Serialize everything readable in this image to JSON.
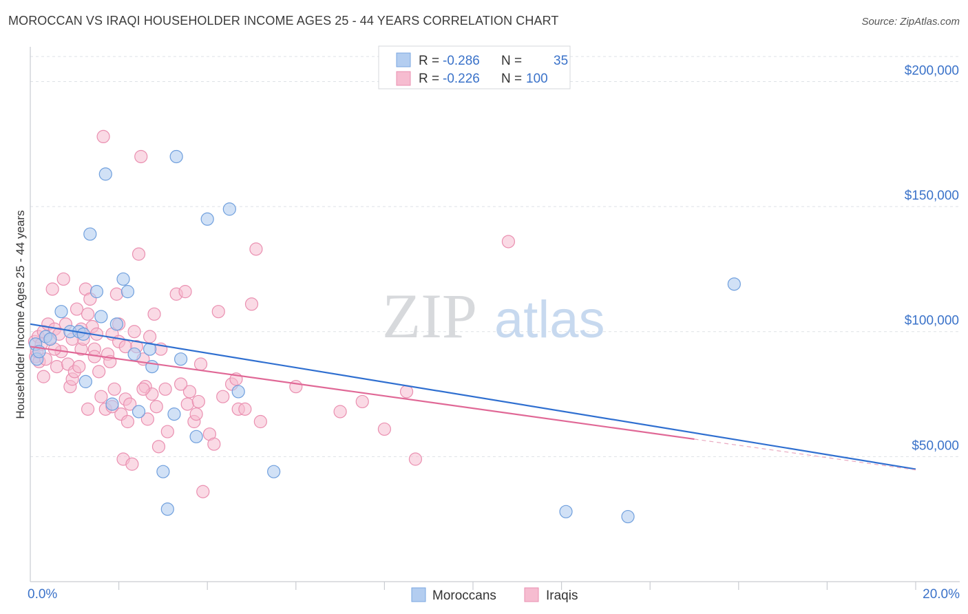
{
  "title": "MOROCCAN VS IRAQI HOUSEHOLDER INCOME AGES 25 - 44 YEARS CORRELATION CHART",
  "source": "Source: ZipAtlas.com",
  "watermark": {
    "zip": "ZIP",
    "atlas": "atlas"
  },
  "colors": {
    "blue": "#3a72c9",
    "blue_fill": "#b3cdf0",
    "blue_line": "#2f6fd0",
    "pink": "#e8709a",
    "pink_fill": "#f6bcd0",
    "pink_line": "#e06896",
    "grid": "#dde1e6"
  },
  "legend": {
    "rows": [
      {
        "r_label": "R =",
        "r_value": "-0.286",
        "n_label": "N =",
        "n_value": "35"
      },
      {
        "r_label": "R =",
        "r_value": "-0.226",
        "n_label": "N =",
        "n_value": "100"
      }
    ]
  },
  "bottom_legend": {
    "moroccans": "Moroccans",
    "iraqis": "Iraqis"
  },
  "chart_data": {
    "type": "scatter",
    "title": "MOROCCAN VS IRAQI HOUSEHOLDER INCOME AGES 25 - 44 YEARS CORRELATION CHART",
    "xlabel": "",
    "ylabel": "Householder Income Ages 25 - 44 years",
    "xlim": [
      0,
      20
    ],
    "ylim": [
      0,
      215000
    ],
    "x_tick_labels": {
      "left": "0.0%",
      "right": "20.0%"
    },
    "y_ticks": [
      {
        "value": 50000,
        "label": "$50,000"
      },
      {
        "value": 100000,
        "label": "$100,000"
      },
      {
        "value": 150000,
        "label": "$150,000"
      },
      {
        "value": 200000,
        "label": "$200,000"
      }
    ],
    "series": [
      {
        "name": "Moroccans",
        "trend": {
          "x0": 0,
          "y0": 103000,
          "x1": 20,
          "y1": 45000
        },
        "points": [
          [
            0.12,
            95000
          ],
          [
            0.15,
            89000
          ],
          [
            0.2,
            92000
          ],
          [
            0.35,
            98000
          ],
          [
            0.45,
            97000
          ],
          [
            0.7,
            108000
          ],
          [
            0.9,
            100000
          ],
          [
            1.1,
            100000
          ],
          [
            1.25,
            80000
          ],
          [
            1.35,
            139000
          ],
          [
            1.5,
            116000
          ],
          [
            1.6,
            106000
          ],
          [
            1.7,
            163000
          ],
          [
            1.85,
            71000
          ],
          [
            2.1,
            121000
          ],
          [
            2.2,
            116000
          ],
          [
            2.35,
            91000
          ],
          [
            2.45,
            68000
          ],
          [
            2.7,
            93000
          ],
          [
            2.75,
            86000
          ],
          [
            3.0,
            44000
          ],
          [
            3.1,
            29000
          ],
          [
            3.25,
            67000
          ],
          [
            3.3,
            170000
          ],
          [
            3.4,
            89000
          ],
          [
            3.75,
            58000
          ],
          [
            4.0,
            145000
          ],
          [
            4.5,
            149000
          ],
          [
            4.7,
            76000
          ],
          [
            5.5,
            44000
          ],
          [
            1.2,
            99000
          ],
          [
            1.95,
            103000
          ],
          [
            12.1,
            28000
          ],
          [
            13.5,
            26000
          ],
          [
            15.9,
            119000
          ]
        ]
      },
      {
        "name": "Iraqis",
        "trend": {
          "x0": 0,
          "y0": 94000,
          "x1": 15,
          "y1": 57000
        },
        "points": [
          [
            0.1,
            96000
          ],
          [
            0.12,
            90000
          ],
          [
            0.15,
            92000
          ],
          [
            0.18,
            98000
          ],
          [
            0.2,
            88000
          ],
          [
            0.25,
            95000
          ],
          [
            0.3,
            100000
          ],
          [
            0.35,
            89000
          ],
          [
            0.4,
            103000
          ],
          [
            0.45,
            97000
          ],
          [
            0.5,
            117000
          ],
          [
            0.55,
            101000
          ],
          [
            0.6,
            86000
          ],
          [
            0.65,
            99000
          ],
          [
            0.7,
            92000
          ],
          [
            0.75,
            121000
          ],
          [
            0.8,
            103000
          ],
          [
            0.85,
            87000
          ],
          [
            0.9,
            78000
          ],
          [
            0.95,
            81000
          ],
          [
            1.0,
            84000
          ],
          [
            1.05,
            109000
          ],
          [
            1.1,
            86000
          ],
          [
            1.15,
            93000
          ],
          [
            1.2,
            97000
          ],
          [
            1.25,
            117000
          ],
          [
            1.3,
            107000
          ],
          [
            1.35,
            113000
          ],
          [
            1.4,
            102000
          ],
          [
            1.45,
            93000
          ],
          [
            1.5,
            99000
          ],
          [
            1.55,
            84000
          ],
          [
            1.6,
            74000
          ],
          [
            1.65,
            178000
          ],
          [
            1.7,
            69000
          ],
          [
            1.75,
            91000
          ],
          [
            1.8,
            88000
          ],
          [
            1.85,
            99000
          ],
          [
            1.9,
            77000
          ],
          [
            1.95,
            115000
          ],
          [
            2.0,
            103000
          ],
          [
            2.05,
            67000
          ],
          [
            2.1,
            49000
          ],
          [
            2.15,
            73000
          ],
          [
            2.2,
            64000
          ],
          [
            2.25,
            71000
          ],
          [
            2.3,
            47000
          ],
          [
            2.35,
            100000
          ],
          [
            2.4,
            94000
          ],
          [
            2.45,
            131000
          ],
          [
            2.5,
            170000
          ],
          [
            2.55,
            89000
          ],
          [
            2.6,
            78000
          ],
          [
            2.65,
            65000
          ],
          [
            2.7,
            98000
          ],
          [
            2.75,
            75000
          ],
          [
            2.8,
            107000
          ],
          [
            2.85,
            70000
          ],
          [
            2.9,
            54000
          ],
          [
            2.95,
            93000
          ],
          [
            3.05,
            77000
          ],
          [
            3.1,
            60000
          ],
          [
            3.3,
            115000
          ],
          [
            3.5,
            116000
          ],
          [
            3.55,
            71000
          ],
          [
            3.6,
            76000
          ],
          [
            3.7,
            64000
          ],
          [
            3.75,
            67000
          ],
          [
            3.8,
            72000
          ],
          [
            3.9,
            36000
          ],
          [
            4.05,
            59000
          ],
          [
            4.15,
            55000
          ],
          [
            4.25,
            108000
          ],
          [
            4.35,
            74000
          ],
          [
            4.55,
            79000
          ],
          [
            4.65,
            81000
          ],
          [
            4.7,
            69000
          ],
          [
            4.85,
            69000
          ],
          [
            5.0,
            111000
          ],
          [
            5.1,
            133000
          ],
          [
            5.2,
            64000
          ],
          [
            6.0,
            78000
          ],
          [
            7.0,
            68000
          ],
          [
            7.5,
            72000
          ],
          [
            8.0,
            61000
          ],
          [
            8.5,
            76000
          ],
          [
            8.7,
            49000
          ],
          [
            10.8,
            136000
          ],
          [
            1.3,
            69000
          ],
          [
            2.55,
            77000
          ],
          [
            1.85,
            70000
          ],
          [
            0.55,
            93000
          ],
          [
            0.95,
            97000
          ],
          [
            1.45,
            90000
          ],
          [
            2.0,
            96000
          ],
          [
            2.15,
            94000
          ],
          [
            3.4,
            79000
          ],
          [
            3.85,
            87000
          ],
          [
            0.3,
            82000
          ],
          [
            1.15,
            101000
          ]
        ]
      }
    ]
  }
}
